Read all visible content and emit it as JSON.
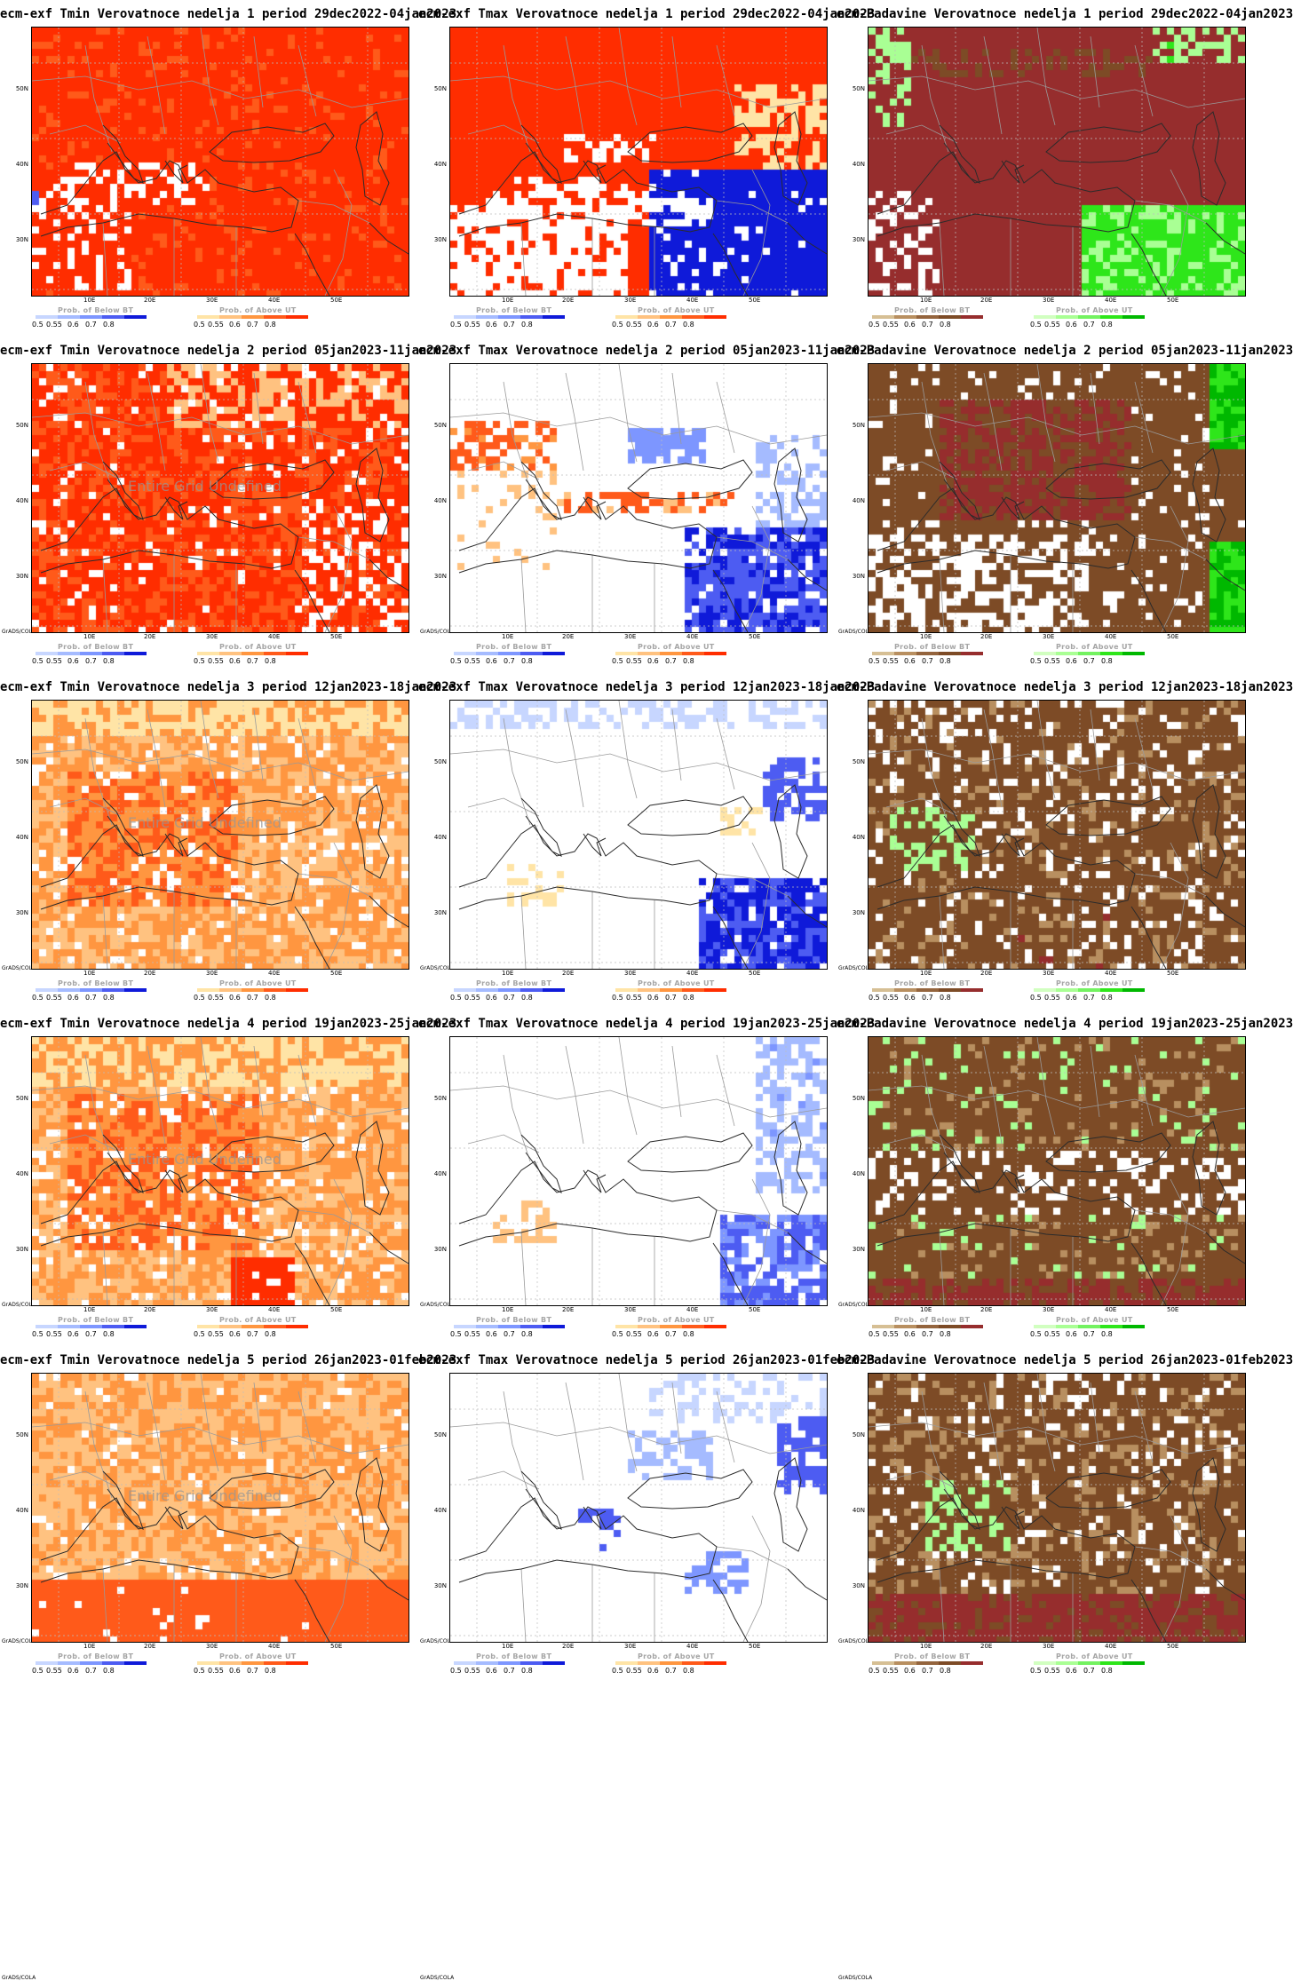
{
  "attribution": "GrADS/COLA",
  "undefined_text": "Entire Grid Undefined",
  "axis": {
    "lat_labels": [
      "50N",
      "40N",
      "30N"
    ],
    "lon_labels": [
      "10E",
      "20E",
      "30E",
      "40E",
      "50E"
    ]
  },
  "colorbars": {
    "below_title": "Prob. of Below BT",
    "above_title": "Prob. of Above UT",
    "ticks": [
      "0.5",
      "0.55",
      "0.6",
      "0.7",
      "0.8"
    ],
    "scales": {
      "blue": [
        "#c7d6ff",
        "#a5bbff",
        "#7d96ff",
        "#4d5cf2",
        "#0f1ad9"
      ],
      "red": [
        "#ffe4a6",
        "#ffc280",
        "#ff9640",
        "#ff5a1a",
        "#ff2d00"
      ],
      "brown": [
        "#d6bf94",
        "#b88f60",
        "#94643d",
        "#7d4b26",
        "#962d2d"
      ],
      "green": [
        "#d1ffc0",
        "#a9ff94",
        "#73f260",
        "#2ee61a",
        "#00b800"
      ]
    }
  },
  "columns": [
    {
      "variable": "Tmin",
      "below_scale": "blue",
      "above_scale": "red"
    },
    {
      "variable": "Tmax",
      "below_scale": "blue",
      "above_scale": "red"
    },
    {
      "variable": "Padavine",
      "below_scale": "brown",
      "above_scale": "green"
    }
  ],
  "titles": [
    [
      "ecm-exf Tmin Verovatnoce nedelja 1 period 29dec2022-04jan2023",
      "ecm-exf Tmax Verovatnoce nedelja 1 period 29dec2022-04jan2023",
      "ecm-Padavine Verovatnoce nedelja 1 period 29dec2022-04jan2023"
    ],
    [
      "ecm-exf Tmin Verovatnoce nedelja 2 period 05jan2023-11jan2023",
      "ecm-exf Tmax Verovatnoce nedelja 2 period 05jan2023-11jan2023",
      "ecm-Padavine Verovatnoce nedelja 2 period 05jan2023-11jan2023"
    ],
    [
      "ecm-exf Tmin Verovatnoce nedelja 3 period 12jan2023-18jan2023",
      "ecm-exf Tmax Verovatnoce nedelja 3 period 12jan2023-18jan2023",
      "ecm-Padavine Verovatnoce nedelja 3 period 12jan2023-18jan2023"
    ],
    [
      "ecm-exf Tmin Verovatnoce nedelja 4 period 19jan2023-25jan2023",
      "ecm-exf Tmax Verovatnoce nedelja 4 period 19jan2023-25jan2023",
      "ecm-Padavine Verovatnoce nedelja 4 period 19jan2023-25jan2023"
    ],
    [
      "ecm-exf Tmin Verovatnoce nedelja 5 period 26jan2023-01feb2023",
      "ecm-exf Tmax Verovatnoce nedelja 5 period 26jan2023-01feb2023",
      "ecm-Padavine Verovatnoce nedelja 5 period 26jan2023-01feb2023"
    ]
  ],
  "panels_with_undefined_text": [
    [
      1,
      0
    ],
    [
      2,
      0
    ],
    [
      3,
      0
    ],
    [
      4,
      0
    ]
  ]
}
